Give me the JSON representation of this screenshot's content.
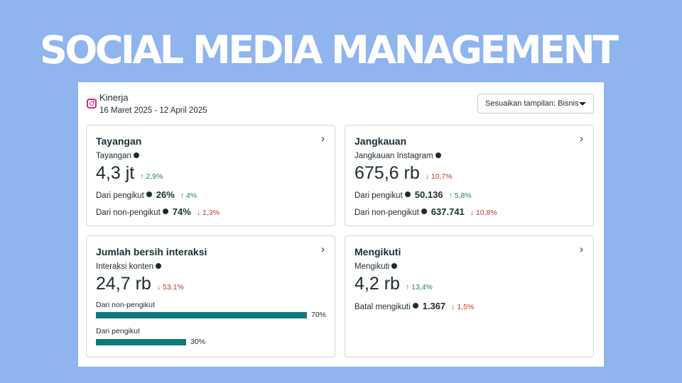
{
  "hero": {
    "title": "SOCIAL MEDIA MANAGEMENT"
  },
  "panel": {
    "title": "Kinerja",
    "date_range": "16 Maret 2025 - 12 April 2025",
    "view_select": "Sesuaikan tampilan: Bisnis"
  },
  "cards": {
    "views": {
      "title": "Tayangan",
      "metric_label": "Tayangan",
      "value": "4,3 jt",
      "delta": "2,9%",
      "delta_direction": "up",
      "followers_label": "Dari pengikut",
      "followers_value": "26%",
      "followers_delta": "4%",
      "nonfollowers_label": "Dari non-pengikut",
      "nonfollowers_value": "74%",
      "nonfollowers_delta": "1,3%"
    },
    "reach": {
      "title": "Jangkauan",
      "metric_label": "Jangkauan Instagram",
      "value": "675,6 rb",
      "delta": "10,7%",
      "followers_label": "Dari pengikut",
      "followers_value": "50.136",
      "followers_delta": "5,8%",
      "nonfollowers_label": "Dari non-pengikut",
      "nonfollowers_value": "637.741",
      "nonfollowers_delta": "10,8%"
    },
    "interactions": {
      "title": "Jumlah bersih interaksi",
      "metric_label": "Interaksi konten",
      "value": "24,7 rb",
      "delta": "53,1%",
      "bar1_label": "Dari non-pengikut",
      "bar1_pct": "70%",
      "bar1_fraction": 0.7,
      "bar2_label": "Dari pengikut",
      "bar2_pct": "30%",
      "bar2_fraction": 0.3
    },
    "follows": {
      "title": "Mengikuti",
      "metric_label": "Mengikuti",
      "value": "4,2 rb",
      "delta": "13,4%",
      "unfollow_label": "Batal mengikuti",
      "unfollow_value": "1.367",
      "unfollow_delta": "1,5%"
    }
  },
  "icons": {
    "chevron": "›",
    "up_arrow": "↑",
    "down_arrow": "↓"
  },
  "colors": {
    "background": "#8fb4ee",
    "bar": "#0b7b7b",
    "up": "#2e7d4f",
    "down": "#c0392b"
  }
}
